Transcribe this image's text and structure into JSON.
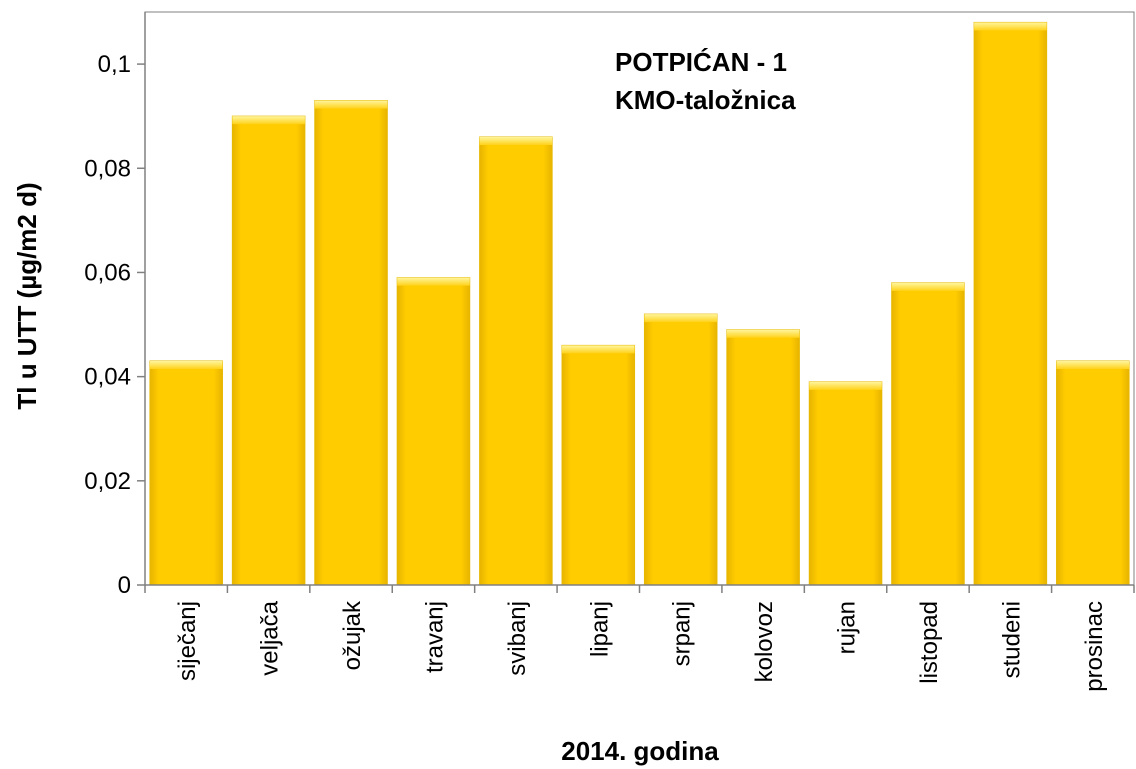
{
  "chart_data": {
    "type": "bar",
    "title": "",
    "annotation_lines": [
      "POTPIĆAN - 1",
      "KMO-taložnica"
    ],
    "xlabel": "2014. godina",
    "ylabel": "Tl u UTT (µg/m2 d)",
    "categories": [
      "siječanj",
      "veljača",
      "ožujak",
      "travanj",
      "svibanj",
      "lipanj",
      "srpanj",
      "kolovoz",
      "rujan",
      "listopad",
      "studeni",
      "prosinac"
    ],
    "values": [
      0.043,
      0.09,
      0.093,
      0.059,
      0.086,
      0.046,
      0.052,
      0.049,
      0.039,
      0.058,
      0.108,
      0.043
    ],
    "ylim": [
      0,
      0.11
    ],
    "yticks": [
      0,
      0.02,
      0.04,
      0.06,
      0.08,
      0.1
    ],
    "ytick_labels": [
      "0",
      "0,02",
      "0,04",
      "0,06",
      "0,08",
      "0,1"
    ],
    "grid": false,
    "legend": "none",
    "colors": {
      "bar_fill": "#ffcc00",
      "bar_edge": "#e6b800",
      "bar_highlight": "#fff176",
      "axis": "#808080"
    }
  }
}
